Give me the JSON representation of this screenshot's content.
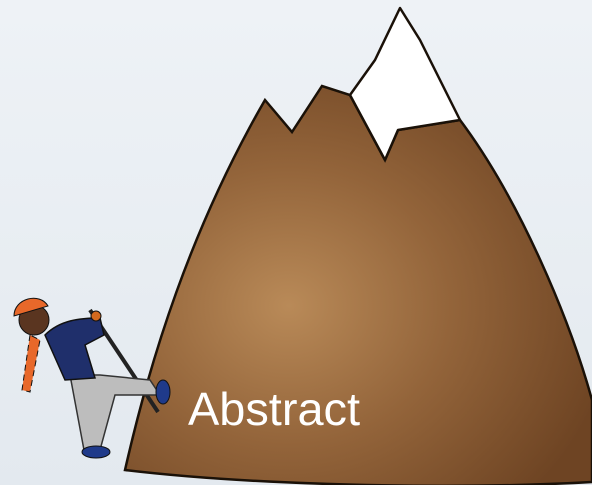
{
  "label": "Abstract"
}
